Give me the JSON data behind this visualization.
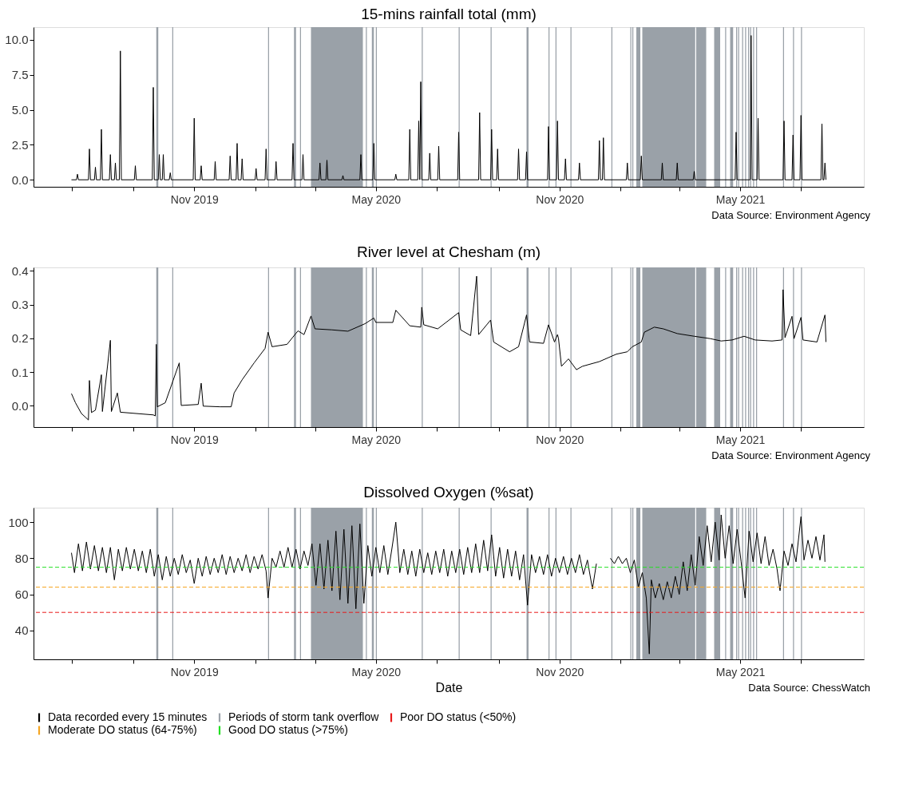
{
  "chart_data": [
    {
      "type": "line",
      "title": "15-mins rainfall total (mm)",
      "annotations": [
        "Data Source: Environment Agency"
      ],
      "xlim": [
        "2019-05-24",
        "2021-09-02"
      ],
      "xticks": [
        {
          "value": "2019-07-01",
          "label": null
        },
        {
          "value": "2019-09-01",
          "label": null
        },
        {
          "value": "2019-11-01",
          "label": "Nov 2019"
        },
        {
          "value": "2020-01-01",
          "label": null
        },
        {
          "value": "2020-03-01",
          "label": null
        },
        {
          "value": "2020-05-01",
          "label": "May 2020"
        },
        {
          "value": "2020-07-01",
          "label": null
        },
        {
          "value": "2020-09-01",
          "label": null
        },
        {
          "value": "2020-11-01",
          "label": "Nov 2020"
        },
        {
          "value": "2021-01-01",
          "label": null
        },
        {
          "value": "2021-03-01",
          "label": null
        },
        {
          "value": "2021-05-01",
          "label": "May 2021"
        },
        {
          "value": "2021-07-01",
          "label": null
        }
      ],
      "ylim": [
        -0.5,
        10.9
      ],
      "yticks": [
        {
          "value": 0,
          "label": "0.0"
        },
        {
          "value": 2.5,
          "label": "2.5"
        },
        {
          "value": 5,
          "label": "5.0"
        },
        {
          "value": 7.5,
          "label": "7.5"
        },
        {
          "value": 10,
          "label": "10.0"
        }
      ],
      "grid": false,
      "x": [
        "2019-07-01",
        "2019-07-06",
        "2019-07-07",
        "2019-07-08",
        "2019-07-18",
        "2019-07-19",
        "2019-07-20",
        "2019-07-24",
        "2019-07-25",
        "2019-07-26",
        "2019-07-30",
        "2019-07-31",
        "2019-08-01",
        "2019-08-08",
        "2019-08-09",
        "2019-08-10",
        "2019-08-13",
        "2019-08-14",
        "2019-08-15",
        "2019-08-18",
        "2019-08-19",
        "2019-08-20",
        "2019-09-02",
        "2019-09-03",
        "2019-09-04",
        "2019-09-20",
        "2019-09-21",
        "2019-09-22",
        "2019-09-26",
        "2019-09-27",
        "2019-09-28",
        "2019-09-30",
        "2019-10-01",
        "2019-10-02",
        "2019-10-07",
        "2019-10-08",
        "2019-10-09",
        "2019-10-31",
        "2019-11-01",
        "2019-11-02",
        "2019-11-07",
        "2019-11-08",
        "2019-11-09",
        "2019-11-21",
        "2019-11-22",
        "2019-11-23",
        "2019-12-06",
        "2019-12-07",
        "2019-12-08",
        "2019-12-13",
        "2019-12-14",
        "2019-12-15",
        "2019-12-18",
        "2019-12-19",
        "2019-12-20",
        "2020-01-01",
        "2020-01-02",
        "2020-01-03",
        "2020-01-11",
        "2020-01-12",
        "2020-01-13",
        "2020-01-21",
        "2020-01-22",
        "2020-01-23",
        "2020-02-07",
        "2020-02-08",
        "2020-02-09",
        "2020-02-17",
        "2020-02-18",
        "2020-02-19",
        "2020-03-05",
        "2020-03-06",
        "2020-03-07",
        "2020-03-12",
        "2020-03-13",
        "2020-03-14",
        "2020-03-28",
        "2020-03-29",
        "2020-03-30",
        "2020-04-15",
        "2020-04-16",
        "2020-04-17",
        "2020-04-28",
        "2020-04-29",
        "2020-04-30",
        "2020-05-20",
        "2020-05-21",
        "2020-05-22",
        "2020-06-03",
        "2020-06-04",
        "2020-06-05",
        "2020-06-12",
        "2020-06-13",
        "2020-06-14",
        "2020-06-15",
        "2020-06-16",
        "2020-06-23",
        "2020-06-24",
        "2020-06-25",
        "2020-07-02",
        "2020-07-03",
        "2020-07-04",
        "2020-07-22",
        "2020-07-23",
        "2020-07-24",
        "2020-08-12",
        "2020-08-13",
        "2020-08-14",
        "2020-08-24",
        "2020-08-25",
        "2020-08-26",
        "2020-08-30",
        "2020-08-31",
        "2020-09-01",
        "2020-09-20",
        "2020-09-21",
        "2020-09-22",
        "2020-09-28",
        "2020-09-29",
        "2020-09-30",
        "2020-10-20",
        "2020-10-21",
        "2020-10-22",
        "2020-10-29",
        "2020-10-30",
        "2020-10-31",
        "2020-11-06",
        "2020-11-07",
        "2020-11-08",
        "2020-11-20",
        "2020-11-21",
        "2020-11-22",
        "2020-12-10",
        "2020-12-11",
        "2020-12-12",
        "2020-12-14",
        "2020-12-15",
        "2020-12-16",
        "2021-01-07",
        "2021-01-08",
        "2021-01-09",
        "2021-01-21",
        "2021-01-22",
        "2021-01-23",
        "2021-02-11",
        "2021-02-12",
        "2021-02-13",
        "2021-02-26",
        "2021-02-27",
        "2021-02-28",
        "2021-03-15",
        "2021-03-16",
        "2021-03-17",
        "2021-04-26",
        "2021-04-27",
        "2021-04-28",
        "2021-05-11",
        "2021-05-12",
        "2021-05-13",
        "2021-05-18",
        "2021-05-19",
        "2021-05-20",
        "2021-06-13",
        "2021-06-14",
        "2021-06-15",
        "2021-06-22",
        "2021-06-23",
        "2021-06-24",
        "2021-06-30",
        "2021-07-01",
        "2021-07-02",
        "2021-07-21",
        "2021-07-22",
        "2021-07-23",
        "2021-07-24",
        "2021-07-25",
        "2021-07-26"
      ],
      "series": [
        {
          "color": "#000000",
          "values": [
            0,
            0,
            0.4,
            0,
            0,
            2.2,
            0,
            0,
            0.9,
            0,
            0,
            3.6,
            0,
            0,
            1.8,
            0,
            0,
            1.2,
            0,
            0,
            9.2,
            0,
            0,
            1.0,
            0,
            0,
            6.6,
            0,
            0,
            1.8,
            0,
            0,
            1.8,
            0,
            0,
            0.5,
            0,
            0,
            4.4,
            0,
            0,
            1.0,
            0,
            0,
            1.3,
            0,
            0,
            1.7,
            0,
            0,
            2.6,
            0,
            0,
            1.5,
            0,
            0,
            0.8,
            0,
            0,
            2.2,
            0,
            0,
            1.3,
            0,
            0,
            2.6,
            0,
            0,
            1.8,
            0,
            0,
            1.2,
            0,
            0,
            1.4,
            0,
            0,
            0.3,
            0,
            0,
            1.8,
            0,
            0,
            2.6,
            0,
            0,
            0.4,
            0,
            0,
            3.6,
            0,
            0,
            4.2,
            0,
            7.0,
            0,
            0,
            1.9,
            0,
            0,
            2.4,
            0,
            0,
            3.4,
            0,
            0,
            4.8,
            0,
            0,
            3.6,
            0,
            0,
            2.2,
            0,
            0,
            2.2,
            0,
            0,
            2.0,
            0,
            0,
            3.8,
            0,
            0,
            4.2,
            0,
            0,
            1.5,
            0,
            0,
            1.2,
            0,
            0,
            2.8,
            0,
            0,
            3.0,
            0,
            0,
            1.2,
            0,
            0,
            1.7,
            0,
            0,
            1.2,
            0,
            0,
            1.2,
            0,
            0,
            0.6,
            0,
            0,
            3.4,
            0,
            0,
            10.3,
            0,
            0,
            4.4,
            0,
            0,
            4.2,
            0,
            0,
            3.2,
            0,
            0,
            4.6,
            0,
            0,
            4.0,
            0,
            0,
            1.2,
            0
          ]
        }
      ],
      "bands": [
        {
          "axis": "x",
          "from": "2019-09-24",
          "to": "2019-09-26",
          "color": "#9aa1a8"
        },
        {
          "axis": "x",
          "from": "2019-10-10",
          "to": "2019-10-11",
          "color": "#9aa1a8"
        },
        {
          "axis": "x",
          "from": "2020-01-14",
          "to": "2020-01-15",
          "color": "#9aa1a8"
        },
        {
          "axis": "x",
          "from": "2020-02-09",
          "to": "2020-02-11",
          "color": "#9aa1a8"
        },
        {
          "axis": "x",
          "from": "2020-02-15",
          "to": "2020-02-16",
          "color": "#9aa1a8"
        },
        {
          "axis": "x",
          "from": "2020-02-26",
          "to": "2020-04-18",
          "color": "#9aa1a8"
        },
        {
          "axis": "x",
          "from": "2020-04-21",
          "to": "2020-04-22",
          "color": "#9aa1a8"
        },
        {
          "axis": "x",
          "from": "2020-04-27",
          "to": "2020-04-29",
          "color": "#9aa1a8"
        },
        {
          "axis": "x",
          "from": "2020-05-01",
          "to": "2020-05-02",
          "color": "#9aa1a8"
        },
        {
          "axis": "x",
          "from": "2020-06-16",
          "to": "2020-06-17",
          "color": "#9aa1a8"
        },
        {
          "axis": "x",
          "from": "2020-07-23",
          "to": "2020-07-24",
          "color": "#9aa1a8"
        },
        {
          "axis": "x",
          "from": "2020-08-24",
          "to": "2020-08-25",
          "color": "#9aa1a8"
        },
        {
          "axis": "x",
          "from": "2020-09-29",
          "to": "2020-10-01",
          "color": "#9aa1a8"
        },
        {
          "axis": "x",
          "from": "2020-10-21",
          "to": "2020-10-22",
          "color": "#9aa1a8"
        },
        {
          "axis": "x",
          "from": "2020-10-28",
          "to": "2020-10-29",
          "color": "#9aa1a8"
        },
        {
          "axis": "x",
          "from": "2020-11-12",
          "to": "2020-11-13",
          "color": "#9aa1a8"
        },
        {
          "axis": "x",
          "from": "2020-12-23",
          "to": "2020-12-24",
          "color": "#9aa1a8"
        },
        {
          "axis": "x",
          "from": "2021-01-11",
          "to": "2021-01-12",
          "color": "#9aa1a8"
        },
        {
          "axis": "x",
          "from": "2021-01-13",
          "to": "2021-01-14",
          "color": "#9aa1a8"
        },
        {
          "axis": "x",
          "from": "2021-01-17",
          "to": "2021-01-21",
          "color": "#9aa1a8"
        },
        {
          "axis": "x",
          "from": "2021-01-23",
          "to": "2021-03-17",
          "color": "#9aa1a8"
        },
        {
          "axis": "x",
          "from": "2021-03-18",
          "to": "2021-03-28",
          "color": "#9aa1a8"
        },
        {
          "axis": "x",
          "from": "2021-04-05",
          "to": "2021-04-11",
          "color": "#9aa1a8"
        },
        {
          "axis": "x",
          "from": "2021-04-16",
          "to": "2021-04-17",
          "color": "#9aa1a8"
        },
        {
          "axis": "x",
          "from": "2021-04-21",
          "to": "2021-04-24",
          "color": "#9aa1a8"
        },
        {
          "axis": "x",
          "from": "2021-04-27",
          "to": "2021-04-28",
          "color": "#9aa1a8"
        },
        {
          "axis": "x",
          "from": "2021-04-29",
          "to": "2021-04-30",
          "color": "#9aa1a8"
        },
        {
          "axis": "x",
          "from": "2021-05-03",
          "to": "2021-05-04",
          "color": "#9aa1a8"
        },
        {
          "axis": "x",
          "from": "2021-05-06",
          "to": "2021-05-07",
          "color": "#9aa1a8"
        },
        {
          "axis": "x",
          "from": "2021-05-09",
          "to": "2021-05-10",
          "color": "#9aa1a8"
        },
        {
          "axis": "x",
          "from": "2021-05-11",
          "to": "2021-05-12",
          "color": "#9aa1a8"
        },
        {
          "axis": "x",
          "from": "2021-05-14",
          "to": "2021-05-15",
          "color": "#9aa1a8"
        },
        {
          "axis": "x",
          "from": "2021-05-17",
          "to": "2021-05-18",
          "color": "#9aa1a8"
        },
        {
          "axis": "x",
          "from": "2021-06-13",
          "to": "2021-06-14",
          "color": "#9aa1a8"
        },
        {
          "axis": "x",
          "from": "2021-06-23",
          "to": "2021-06-24",
          "color": "#9aa1a8"
        },
        {
          "axis": "x",
          "from": "2021-07-01",
          "to": "2021-07-02",
          "color": "#9aa1a8"
        }
      ]
    },
    {
      "type": "line",
      "title": "River level at Chesham (m)",
      "annotations": [
        "Data Source: Environment Agency"
      ],
      "xlim": [
        "2019-05-24",
        "2021-09-02"
      ],
      "xticks": [
        {
          "value": "2019-07-01",
          "label": null
        },
        {
          "value": "2019-09-01",
          "label": null
        },
        {
          "value": "2019-11-01",
          "label": "Nov 2019"
        },
        {
          "value": "2020-01-01",
          "label": null
        },
        {
          "value": "2020-03-01",
          "label": null
        },
        {
          "value": "2020-05-01",
          "label": "May 2020"
        },
        {
          "value": "2020-07-01",
          "label": null
        },
        {
          "value": "2020-09-01",
          "label": null
        },
        {
          "value": "2020-11-01",
          "label": "Nov 2020"
        },
        {
          "value": "2021-01-01",
          "label": null
        },
        {
          "value": "2021-03-01",
          "label": null
        },
        {
          "value": "2021-05-01",
          "label": "May 2021"
        },
        {
          "value": "2021-07-01",
          "label": null
        }
      ],
      "ylim": [
        -0.063,
        0.41
      ],
      "yticks": [
        {
          "value": 0,
          "label": "0.0"
        },
        {
          "value": 0.1,
          "label": "0.1"
        },
        {
          "value": 0.2,
          "label": "0.2"
        },
        {
          "value": 0.3,
          "label": "0.3"
        },
        {
          "value": 0.4,
          "label": "0.4"
        }
      ],
      "grid": false,
      "x": [
        "2019-07-01",
        "2019-07-05",
        "2019-07-11",
        "2019-07-18",
        "2019-07-19",
        "2019-07-21",
        "2019-07-25",
        "2019-07-31",
        "2019-08-01",
        "2019-08-09",
        "2019-08-10",
        "2019-08-16",
        "2019-08-19",
        "2019-09-21",
        "2019-09-23",
        "2019-09-24",
        "2019-09-25",
        "2019-10-03",
        "2019-10-17",
        "2019-10-19",
        "2019-11-05",
        "2019-11-08",
        "2019-11-10",
        "2019-11-27",
        "2019-12-08",
        "2019-12-11",
        "2019-12-19",
        "2019-12-31",
        "2020-01-11",
        "2020-01-14",
        "2020-01-18",
        "2020-02-02",
        "2020-02-08",
        "2020-02-13",
        "2020-02-19",
        "2020-02-26",
        "2020-03-01",
        "2020-03-18",
        "2020-04-03",
        "2020-04-20",
        "2020-04-29",
        "2020-05-01",
        "2020-05-18",
        "2020-05-21",
        "2020-06-04",
        "2020-06-15",
        "2020-06-16",
        "2020-06-18",
        "2020-07-02",
        "2020-07-23",
        "2020-07-25",
        "2020-08-04",
        "2020-08-10",
        "2020-08-12",
        "2020-08-24",
        "2020-08-27",
        "2020-09-12",
        "2020-09-21",
        "2020-09-29",
        "2020-10-02",
        "2020-10-16",
        "2020-10-21",
        "2020-10-27",
        "2020-10-30",
        "2020-10-31",
        "2020-11-03",
        "2020-11-10",
        "2020-11-18",
        "2020-11-24",
        "2020-12-11",
        "2020-12-28",
        "2021-01-08",
        "2021-01-13",
        "2021-01-22",
        "2021-01-25",
        "2021-02-04",
        "2021-02-13",
        "2021-02-27",
        "2021-03-16",
        "2021-04-01",
        "2021-04-12",
        "2021-04-23",
        "2021-05-05",
        "2021-05-16",
        "2021-06-02",
        "2021-06-12",
        "2021-06-13",
        "2021-06-15",
        "2021-06-22",
        "2021-06-24",
        "2021-07-01",
        "2021-07-03",
        "2021-07-17",
        "2021-07-25",
        "2021-07-26"
      ],
      "series": [
        {
          "color": "#000000",
          "values": [
            0.036,
            0.009,
            -0.023,
            -0.042,
            0.075,
            -0.02,
            -0.013,
            0.092,
            -0.017,
            0.194,
            -0.017,
            0.038,
            -0.019,
            -0.027,
            -0.03,
            0.182,
            -0.003,
            0.009,
            0.127,
            0.001,
            0.004,
            0.067,
            -0.001,
            -0.003,
            -0.003,
            0.038,
            0.077,
            0.127,
            0.17,
            0.218,
            0.175,
            0.182,
            0.204,
            0.222,
            0.211,
            0.266,
            0.228,
            0.225,
            0.221,
            0.243,
            0.26,
            0.247,
            0.247,
            0.283,
            0.237,
            0.233,
            0.292,
            0.24,
            0.228,
            0.276,
            0.225,
            0.208,
            0.384,
            0.211,
            0.254,
            0.189,
            0.16,
            0.175,
            0.269,
            0.189,
            0.185,
            0.24,
            0.189,
            0.211,
            0.2,
            0.117,
            0.139,
            0.107,
            0.117,
            0.131,
            0.153,
            0.16,
            0.175,
            0.189,
            0.218,
            0.233,
            0.228,
            0.214,
            0.206,
            0.199,
            0.192,
            0.195,
            0.206,
            0.195,
            0.192,
            0.195,
            0.344,
            0.202,
            0.265,
            0.199,
            0.262,
            0.195,
            0.189,
            0.269,
            0.189
          ]
        }
      ],
      "bands": [
        {
          "axis": "x",
          "from": "2019-09-24",
          "to": "2019-09-26",
          "color": "#9aa1a8"
        },
        {
          "axis": "x",
          "from": "2019-10-10",
          "to": "2019-10-11",
          "color": "#9aa1a8"
        },
        {
          "axis": "x",
          "from": "2020-01-14",
          "to": "2020-01-15",
          "color": "#9aa1a8"
        },
        {
          "axis": "x",
          "from": "2020-02-09",
          "to": "2020-02-11",
          "color": "#9aa1a8"
        },
        {
          "axis": "x",
          "from": "2020-02-15",
          "to": "2020-02-16",
          "color": "#9aa1a8"
        },
        {
          "axis": "x",
          "from": "2020-02-26",
          "to": "2020-04-18",
          "color": "#9aa1a8"
        },
        {
          "axis": "x",
          "from": "2020-04-21",
          "to": "2020-04-22",
          "color": "#9aa1a8"
        },
        {
          "axis": "x",
          "from": "2020-04-27",
          "to": "2020-04-29",
          "color": "#9aa1a8"
        },
        {
          "axis": "x",
          "from": "2020-05-01",
          "to": "2020-05-02",
          "color": "#9aa1a8"
        },
        {
          "axis": "x",
          "from": "2020-06-16",
          "to": "2020-06-17",
          "color": "#9aa1a8"
        },
        {
          "axis": "x",
          "from": "2020-07-23",
          "to": "2020-07-24",
          "color": "#9aa1a8"
        },
        {
          "axis": "x",
          "from": "2020-08-24",
          "to": "2020-08-25",
          "color": "#9aa1a8"
        },
        {
          "axis": "x",
          "from": "2020-09-29",
          "to": "2020-10-01",
          "color": "#9aa1a8"
        },
        {
          "axis": "x",
          "from": "2020-10-21",
          "to": "2020-10-22",
          "color": "#9aa1a8"
        },
        {
          "axis": "x",
          "from": "2020-10-28",
          "to": "2020-10-29",
          "color": "#9aa1a8"
        },
        {
          "axis": "x",
          "from": "2020-11-12",
          "to": "2020-11-13",
          "color": "#9aa1a8"
        },
        {
          "axis": "x",
          "from": "2020-12-23",
          "to": "2020-12-24",
          "color": "#9aa1a8"
        },
        {
          "axis": "x",
          "from": "2021-01-11",
          "to": "2021-01-12",
          "color": "#9aa1a8"
        },
        {
          "axis": "x",
          "from": "2021-01-13",
          "to": "2021-01-14",
          "color": "#9aa1a8"
        },
        {
          "axis": "x",
          "from": "2021-01-17",
          "to": "2021-01-21",
          "color": "#9aa1a8"
        },
        {
          "axis": "x",
          "from": "2021-01-23",
          "to": "2021-03-17",
          "color": "#9aa1a8"
        },
        {
          "axis": "x",
          "from": "2021-03-18",
          "to": "2021-03-28",
          "color": "#9aa1a8"
        },
        {
          "axis": "x",
          "from": "2021-04-05",
          "to": "2021-04-11",
          "color": "#9aa1a8"
        },
        {
          "axis": "x",
          "from": "2021-04-16",
          "to": "2021-04-17",
          "color": "#9aa1a8"
        },
        {
          "axis": "x",
          "from": "2021-04-21",
          "to": "2021-04-24",
          "color": "#9aa1a8"
        },
        {
          "axis": "x",
          "from": "2021-04-27",
          "to": "2021-04-28",
          "color": "#9aa1a8"
        },
        {
          "axis": "x",
          "from": "2021-04-29",
          "to": "2021-04-30",
          "color": "#9aa1a8"
        },
        {
          "axis": "x",
          "from": "2021-05-03",
          "to": "2021-05-04",
          "color": "#9aa1a8"
        },
        {
          "axis": "x",
          "from": "2021-05-06",
          "to": "2021-05-07",
          "color": "#9aa1a8"
        },
        {
          "axis": "x",
          "from": "2021-05-09",
          "to": "2021-05-10",
          "color": "#9aa1a8"
        },
        {
          "axis": "x",
          "from": "2021-05-11",
          "to": "2021-05-12",
          "color": "#9aa1a8"
        },
        {
          "axis": "x",
          "from": "2021-05-14",
          "to": "2021-05-15",
          "color": "#9aa1a8"
        },
        {
          "axis": "x",
          "from": "2021-05-17",
          "to": "2021-05-18",
          "color": "#9aa1a8"
        },
        {
          "axis": "x",
          "from": "2021-06-13",
          "to": "2021-06-14",
          "color": "#9aa1a8"
        },
        {
          "axis": "x",
          "from": "2021-06-23",
          "to": "2021-06-24",
          "color": "#9aa1a8"
        },
        {
          "axis": "x",
          "from": "2021-07-01",
          "to": "2021-07-02",
          "color": "#9aa1a8"
        }
      ]
    },
    {
      "type": "line",
      "title": "Dissolved Oxygen (%sat)",
      "xlabel": "Date",
      "annotations": [
        "Data Source: ChessWatch"
      ],
      "xlim": [
        "2019-05-24",
        "2021-09-02"
      ],
      "xticks": [
        {
          "value": "2019-07-01",
          "label": null
        },
        {
          "value": "2019-09-01",
          "label": null
        },
        {
          "value": "2019-11-01",
          "label": "Nov 2019"
        },
        {
          "value": "2020-01-01",
          "label": null
        },
        {
          "value": "2020-03-01",
          "label": null
        },
        {
          "value": "2020-05-01",
          "label": "May 2020"
        },
        {
          "value": "2020-07-01",
          "label": null
        },
        {
          "value": "2020-09-01",
          "label": null
        },
        {
          "value": "2020-11-01",
          "label": "Nov 2020"
        },
        {
          "value": "2021-01-01",
          "label": null
        },
        {
          "value": "2021-03-01",
          "label": null
        },
        {
          "value": "2021-05-01",
          "label": "May 2021"
        },
        {
          "value": "2021-07-01",
          "label": null
        }
      ],
      "ylim": [
        24,
        108
      ],
      "yticks": [
        40,
        60,
        80,
        100
      ],
      "grid": false,
      "legend": "bottom",
      "x": [
        "2019-07-01",
        "2019-07-04",
        "2019-07-08",
        "2019-07-12",
        "2019-07-16",
        "2019-07-20",
        "2019-07-24",
        "2019-07-28",
        "2019-08-01",
        "2019-08-05",
        "2019-08-09",
        "2019-08-13",
        "2019-08-17",
        "2019-08-21",
        "2019-08-25",
        "2019-08-29",
        "2019-09-02",
        "2019-09-06",
        "2019-09-10",
        "2019-09-14",
        "2019-09-18",
        "2019-09-22",
        "2019-09-26",
        "2019-09-30",
        "2019-10-04",
        "2019-10-08",
        "2019-10-12",
        "2019-10-16",
        "2019-10-20",
        "2019-10-24",
        "2019-10-28",
        "2019-11-01",
        "2019-11-05",
        "2019-11-09",
        "2019-11-13",
        "2019-11-17",
        "2019-11-21",
        "2019-11-25",
        "2019-11-29",
        "2019-12-03",
        "2019-12-07",
        "2019-12-11",
        "2019-12-15",
        "2019-12-19",
        "2019-12-23",
        "2019-12-27",
        "2019-12-31",
        "2020-01-04",
        "2020-01-08",
        "2020-01-12",
        "2020-01-14",
        "2020-01-18",
        "2020-01-22",
        "2020-01-26",
        "2020-01-30",
        "2020-02-03",
        "2020-02-07",
        "2020-02-11",
        "2020-02-15",
        "2020-02-19",
        "2020-02-23",
        "2020-02-27",
        "2020-03-02",
        "2020-03-06",
        "2020-03-10",
        "2020-03-14",
        "2020-03-18",
        "2020-03-22",
        "2020-03-26",
        "2020-03-30",
        "2020-04-03",
        "2020-04-07",
        "2020-04-11",
        "2020-04-15",
        "2020-04-19",
        "2020-04-23",
        "2020-04-27",
        "2020-05-01",
        "2020-05-05",
        "2020-05-09",
        "2020-05-13",
        "2020-05-17",
        "2020-05-21",
        "2020-05-25",
        "2020-05-29",
        "2020-06-02",
        "2020-06-06",
        "2020-06-10",
        "2020-06-14",
        "2020-06-18",
        "2020-06-22",
        "2020-06-26",
        "2020-06-30",
        "2020-07-04",
        "2020-07-08",
        "2020-07-12",
        "2020-07-16",
        "2020-07-20",
        "2020-07-24",
        "2020-07-28",
        "2020-08-01",
        "2020-08-05",
        "2020-08-09",
        "2020-08-13",
        "2020-08-17",
        "2020-08-21",
        "2020-08-25",
        "2020-08-29",
        "2020-09-02",
        "2020-09-06",
        "2020-09-10",
        "2020-09-14",
        "2020-09-18",
        "2020-09-22",
        "2020-09-26",
        "2020-09-30",
        "2020-10-04",
        "2020-10-08",
        "2020-10-12",
        "2020-10-16",
        "2020-10-20",
        "2020-10-24",
        "2020-10-28",
        "2020-11-01",
        "2020-11-05",
        "2020-11-09",
        "2020-11-13",
        "2020-11-17",
        "2020-11-21",
        "2020-11-25",
        "2020-11-29",
        "2020-12-04",
        "2020-12-08",
        "2020-12-12",
        "2020-12-22",
        "2020-12-26",
        "2020-12-30",
        "2021-01-03",
        "2021-01-07",
        "2021-01-11",
        "2021-01-15",
        "2021-01-19",
        "2021-01-23",
        "2021-01-27",
        "2021-01-30",
        "2021-02-01",
        "2021-02-05",
        "2021-02-09",
        "2021-02-13",
        "2021-02-17",
        "2021-02-21",
        "2021-02-25",
        "2021-03-01",
        "2021-03-05",
        "2021-03-09",
        "2021-03-13",
        "2021-03-17",
        "2021-03-21",
        "2021-03-25",
        "2021-03-29",
        "2021-04-02",
        "2021-04-06",
        "2021-04-10",
        "2021-04-12",
        "2021-04-16",
        "2021-04-20",
        "2021-04-24",
        "2021-04-28",
        "2021-05-02",
        "2021-05-06",
        "2021-05-10",
        "2021-05-14",
        "2021-05-18",
        "2021-05-22",
        "2021-05-26",
        "2021-05-30",
        "2021-06-03",
        "2021-06-07",
        "2021-06-10",
        "2021-06-14",
        "2021-06-18",
        "2021-06-22",
        "2021-06-26",
        "2021-07-01",
        "2021-07-04",
        "2021-07-08",
        "2021-07-12",
        "2021-07-16",
        "2021-07-20",
        "2021-07-24",
        "2021-07-25"
      ],
      "series": [
        {
          "name": "Data recorded every 15 minutes",
          "color": "#000000",
          "values": [
            83,
            72,
            88,
            73,
            89,
            74,
            87,
            73,
            86,
            72,
            86,
            68,
            85,
            73,
            86,
            74,
            85,
            73,
            84,
            72,
            85,
            70,
            82,
            68,
            81,
            70,
            80,
            71,
            82,
            72,
            79,
            66,
            80,
            70,
            81,
            71,
            80,
            72,
            82,
            71,
            81,
            72,
            80,
            73,
            82,
            72,
            81,
            74,
            82,
            73,
            58,
            80,
            75,
            84,
            75,
            86,
            75,
            85,
            74,
            84,
            76,
            88,
            65,
            88,
            63,
            90,
            62,
            95,
            57,
            96,
            55,
            98,
            52,
            99,
            55,
            87,
            70,
            86,
            72,
            87,
            71,
            85,
            100,
            72,
            85,
            71,
            84,
            70,
            85,
            72,
            83,
            71,
            84,
            72,
            85,
            70,
            84,
            72,
            85,
            71,
            86,
            72,
            88,
            72,
            90,
            73,
            93,
            70,
            86,
            69,
            85,
            70,
            84,
            68,
            82,
            54,
            82,
            72,
            81,
            71,
            82,
            70,
            80,
            72,
            81,
            71,
            80,
            72,
            82,
            71,
            79,
            63,
            77,
            null,
            80,
            77,
            81,
            77,
            80,
            72,
            79,
            64,
            72,
            58,
            27,
            68,
            58,
            66,
            57,
            67,
            58,
            70,
            60,
            78,
            62,
            82,
            65,
            92,
            76,
            98,
            78,
            100,
            79,
            104,
            80,
            98,
            77,
            96,
            78,
            58,
            95,
            78,
            94,
            77,
            92,
            76,
            85,
            74,
            62,
            84,
            76,
            88,
            78,
            103,
            79,
            90,
            80,
            92,
            79,
            93,
            78
          ]
        }
      ],
      "ref_lines": [
        {
          "axis": "y",
          "value": 50,
          "label": "Poor DO status (<50%)",
          "color": "#e8191a",
          "line_style": "dashed"
        },
        {
          "axis": "y",
          "value": 64,
          "label": "Moderate DO status (64-75%)",
          "color": "#f5a623",
          "line_style": "dashed"
        },
        {
          "axis": "y",
          "value": 75,
          "label": "Good DO status (>75%)",
          "color": "#22e022",
          "line_style": "dashed"
        }
      ],
      "bands": [
        {
          "axis": "x",
          "from": "2019-09-24",
          "to": "2019-09-26",
          "color": "#9aa1a8",
          "label": "Periods of storm tank overflow"
        },
        {
          "axis": "x",
          "from": "2019-10-10",
          "to": "2019-10-11",
          "color": "#9aa1a8"
        },
        {
          "axis": "x",
          "from": "2020-01-14",
          "to": "2020-01-15",
          "color": "#9aa1a8"
        },
        {
          "axis": "x",
          "from": "2020-02-09",
          "to": "2020-02-11",
          "color": "#9aa1a8"
        },
        {
          "axis": "x",
          "from": "2020-02-15",
          "to": "2020-02-16",
          "color": "#9aa1a8"
        },
        {
          "axis": "x",
          "from": "2020-02-26",
          "to": "2020-04-18",
          "color": "#9aa1a8"
        },
        {
          "axis": "x",
          "from": "2020-04-21",
          "to": "2020-04-22",
          "color": "#9aa1a8"
        },
        {
          "axis": "x",
          "from": "2020-04-27",
          "to": "2020-04-29",
          "color": "#9aa1a8"
        },
        {
          "axis": "x",
          "from": "2020-05-01",
          "to": "2020-05-02",
          "color": "#9aa1a8"
        },
        {
          "axis": "x",
          "from": "2020-06-16",
          "to": "2020-06-17",
          "color": "#9aa1a8"
        },
        {
          "axis": "x",
          "from": "2020-07-23",
          "to": "2020-07-24",
          "color": "#9aa1a8"
        },
        {
          "axis": "x",
          "from": "2020-08-24",
          "to": "2020-08-25",
          "color": "#9aa1a8"
        },
        {
          "axis": "x",
          "from": "2020-09-29",
          "to": "2020-10-01",
          "color": "#9aa1a8"
        },
        {
          "axis": "x",
          "from": "2020-10-21",
          "to": "2020-10-22",
          "color": "#9aa1a8"
        },
        {
          "axis": "x",
          "from": "2020-10-28",
          "to": "2020-10-29",
          "color": "#9aa1a8"
        },
        {
          "axis": "x",
          "from": "2020-11-12",
          "to": "2020-11-13",
          "color": "#9aa1a8"
        },
        {
          "axis": "x",
          "from": "2020-12-23",
          "to": "2020-12-24",
          "color": "#9aa1a8"
        },
        {
          "axis": "x",
          "from": "2021-01-11",
          "to": "2021-01-12",
          "color": "#9aa1a8"
        },
        {
          "axis": "x",
          "from": "2021-01-13",
          "to": "2021-01-14",
          "color": "#9aa1a8"
        },
        {
          "axis": "x",
          "from": "2021-01-17",
          "to": "2021-01-21",
          "color": "#9aa1a8"
        },
        {
          "axis": "x",
          "from": "2021-01-23",
          "to": "2021-03-17",
          "color": "#9aa1a8"
        },
        {
          "axis": "x",
          "from": "2021-03-18",
          "to": "2021-03-28",
          "color": "#9aa1a8"
        },
        {
          "axis": "x",
          "from": "2021-04-05",
          "to": "2021-04-11",
          "color": "#9aa1a8"
        },
        {
          "axis": "x",
          "from": "2021-04-16",
          "to": "2021-04-17",
          "color": "#9aa1a8"
        },
        {
          "axis": "x",
          "from": "2021-04-21",
          "to": "2021-04-24",
          "color": "#9aa1a8"
        },
        {
          "axis": "x",
          "from": "2021-04-27",
          "to": "2021-04-28",
          "color": "#9aa1a8"
        },
        {
          "axis": "x",
          "from": "2021-04-29",
          "to": "2021-04-30",
          "color": "#9aa1a8"
        },
        {
          "axis": "x",
          "from": "2021-05-03",
          "to": "2021-05-04",
          "color": "#9aa1a8"
        },
        {
          "axis": "x",
          "from": "2021-05-06",
          "to": "2021-05-07",
          "color": "#9aa1a8"
        },
        {
          "axis": "x",
          "from": "2021-05-09",
          "to": "2021-05-10",
          "color": "#9aa1a8"
        },
        {
          "axis": "x",
          "from": "2021-05-11",
          "to": "2021-05-12",
          "color": "#9aa1a8"
        },
        {
          "axis": "x",
          "from": "2021-05-14",
          "to": "2021-05-15",
          "color": "#9aa1a8"
        },
        {
          "axis": "x",
          "from": "2021-05-17",
          "to": "2021-05-18",
          "color": "#9aa1a8"
        },
        {
          "axis": "x",
          "from": "2021-06-13",
          "to": "2021-06-14",
          "color": "#9aa1a8"
        },
        {
          "axis": "x",
          "from": "2021-06-23",
          "to": "2021-06-24",
          "color": "#9aa1a8"
        },
        {
          "axis": "x",
          "from": "2021-07-01",
          "to": "2021-07-02",
          "color": "#9aa1a8"
        }
      ]
    }
  ]
}
